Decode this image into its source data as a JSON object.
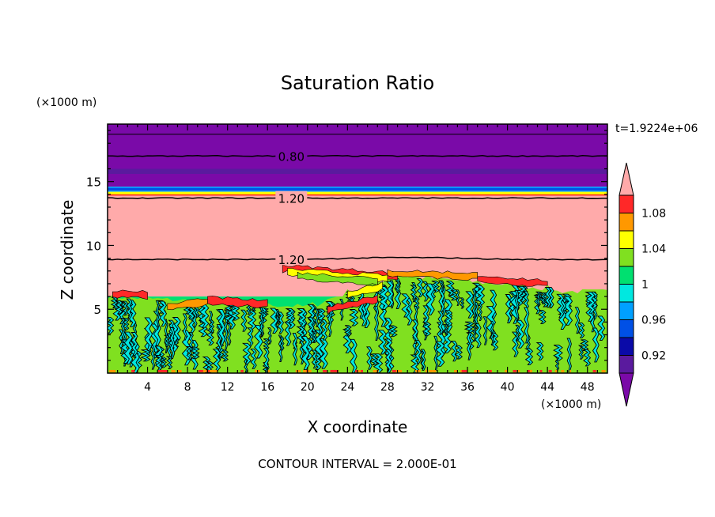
{
  "chart_data": {
    "type": "heatmap",
    "title": "Saturation Ratio",
    "xlabel": "X coordinate",
    "ylabel": "Z coordinate",
    "x_unit": "(×1000 m)",
    "y_unit": "(×1000 m)",
    "time_label": "t=1.9224e+06",
    "footer": "CONTOUR INTERVAL = 2.000E-01",
    "xlim": [
      0,
      50
    ],
    "ylim": [
      0,
      19.5
    ],
    "x_ticks": [
      4,
      8,
      12,
      16,
      20,
      24,
      28,
      32,
      36,
      40,
      44,
      48
    ],
    "x_tick_labels": [
      "4",
      "8",
      "12",
      "16",
      "20",
      "24",
      "28",
      "32",
      "36",
      "40",
      "44",
      "48"
    ],
    "y_ticks": [
      5,
      10,
      15
    ],
    "y_tick_labels": [
      "5",
      "10",
      "15"
    ],
    "colorbar": {
      "levels": [
        0.9,
        0.92,
        0.94,
        0.96,
        0.98,
        1.0,
        1.02,
        1.04,
        1.06,
        1.08,
        1.1
      ],
      "tick_values": [
        0.92,
        0.96,
        1.0,
        1.04,
        1.08
      ],
      "tick_labels": [
        "0.92",
        "0.96",
        "1",
        "1.04",
        "1.08"
      ],
      "colors": [
        "#5a1a9e",
        "#0a0aa8",
        "#0050e6",
        "#00a0ff",
        "#00e8e0",
        "#00e070",
        "#80e020",
        "#ffff00",
        "#ff9800",
        "#ff2828"
      ],
      "under_color": "#7a0aa8",
      "over_color": "#ffaaaa"
    },
    "contour_lines": [
      {
        "level": 0.8,
        "label": "0.80",
        "z": 17.0,
        "label_x": 16.8
      },
      {
        "level": 1.2,
        "label": "1.20",
        "z": 13.7,
        "label_x": 16.8
      },
      {
        "level": 1.2,
        "label": "1.20",
        "z": 8.9,
        "label_x": 16.8
      }
    ],
    "layers": [
      {
        "z0": 14.6,
        "z1": 19.5,
        "value": 0.8
      },
      {
        "z0": 14.2,
        "z1": 14.6,
        "value": 0.97
      },
      {
        "z0": 13.9,
        "z1": 14.2,
        "value": 1.05
      },
      {
        "z0": 6.0,
        "z1": 13.9,
        "value": 1.15
      },
      {
        "z0": 0,
        "z1": 6.0,
        "value": 1.01
      }
    ]
  }
}
